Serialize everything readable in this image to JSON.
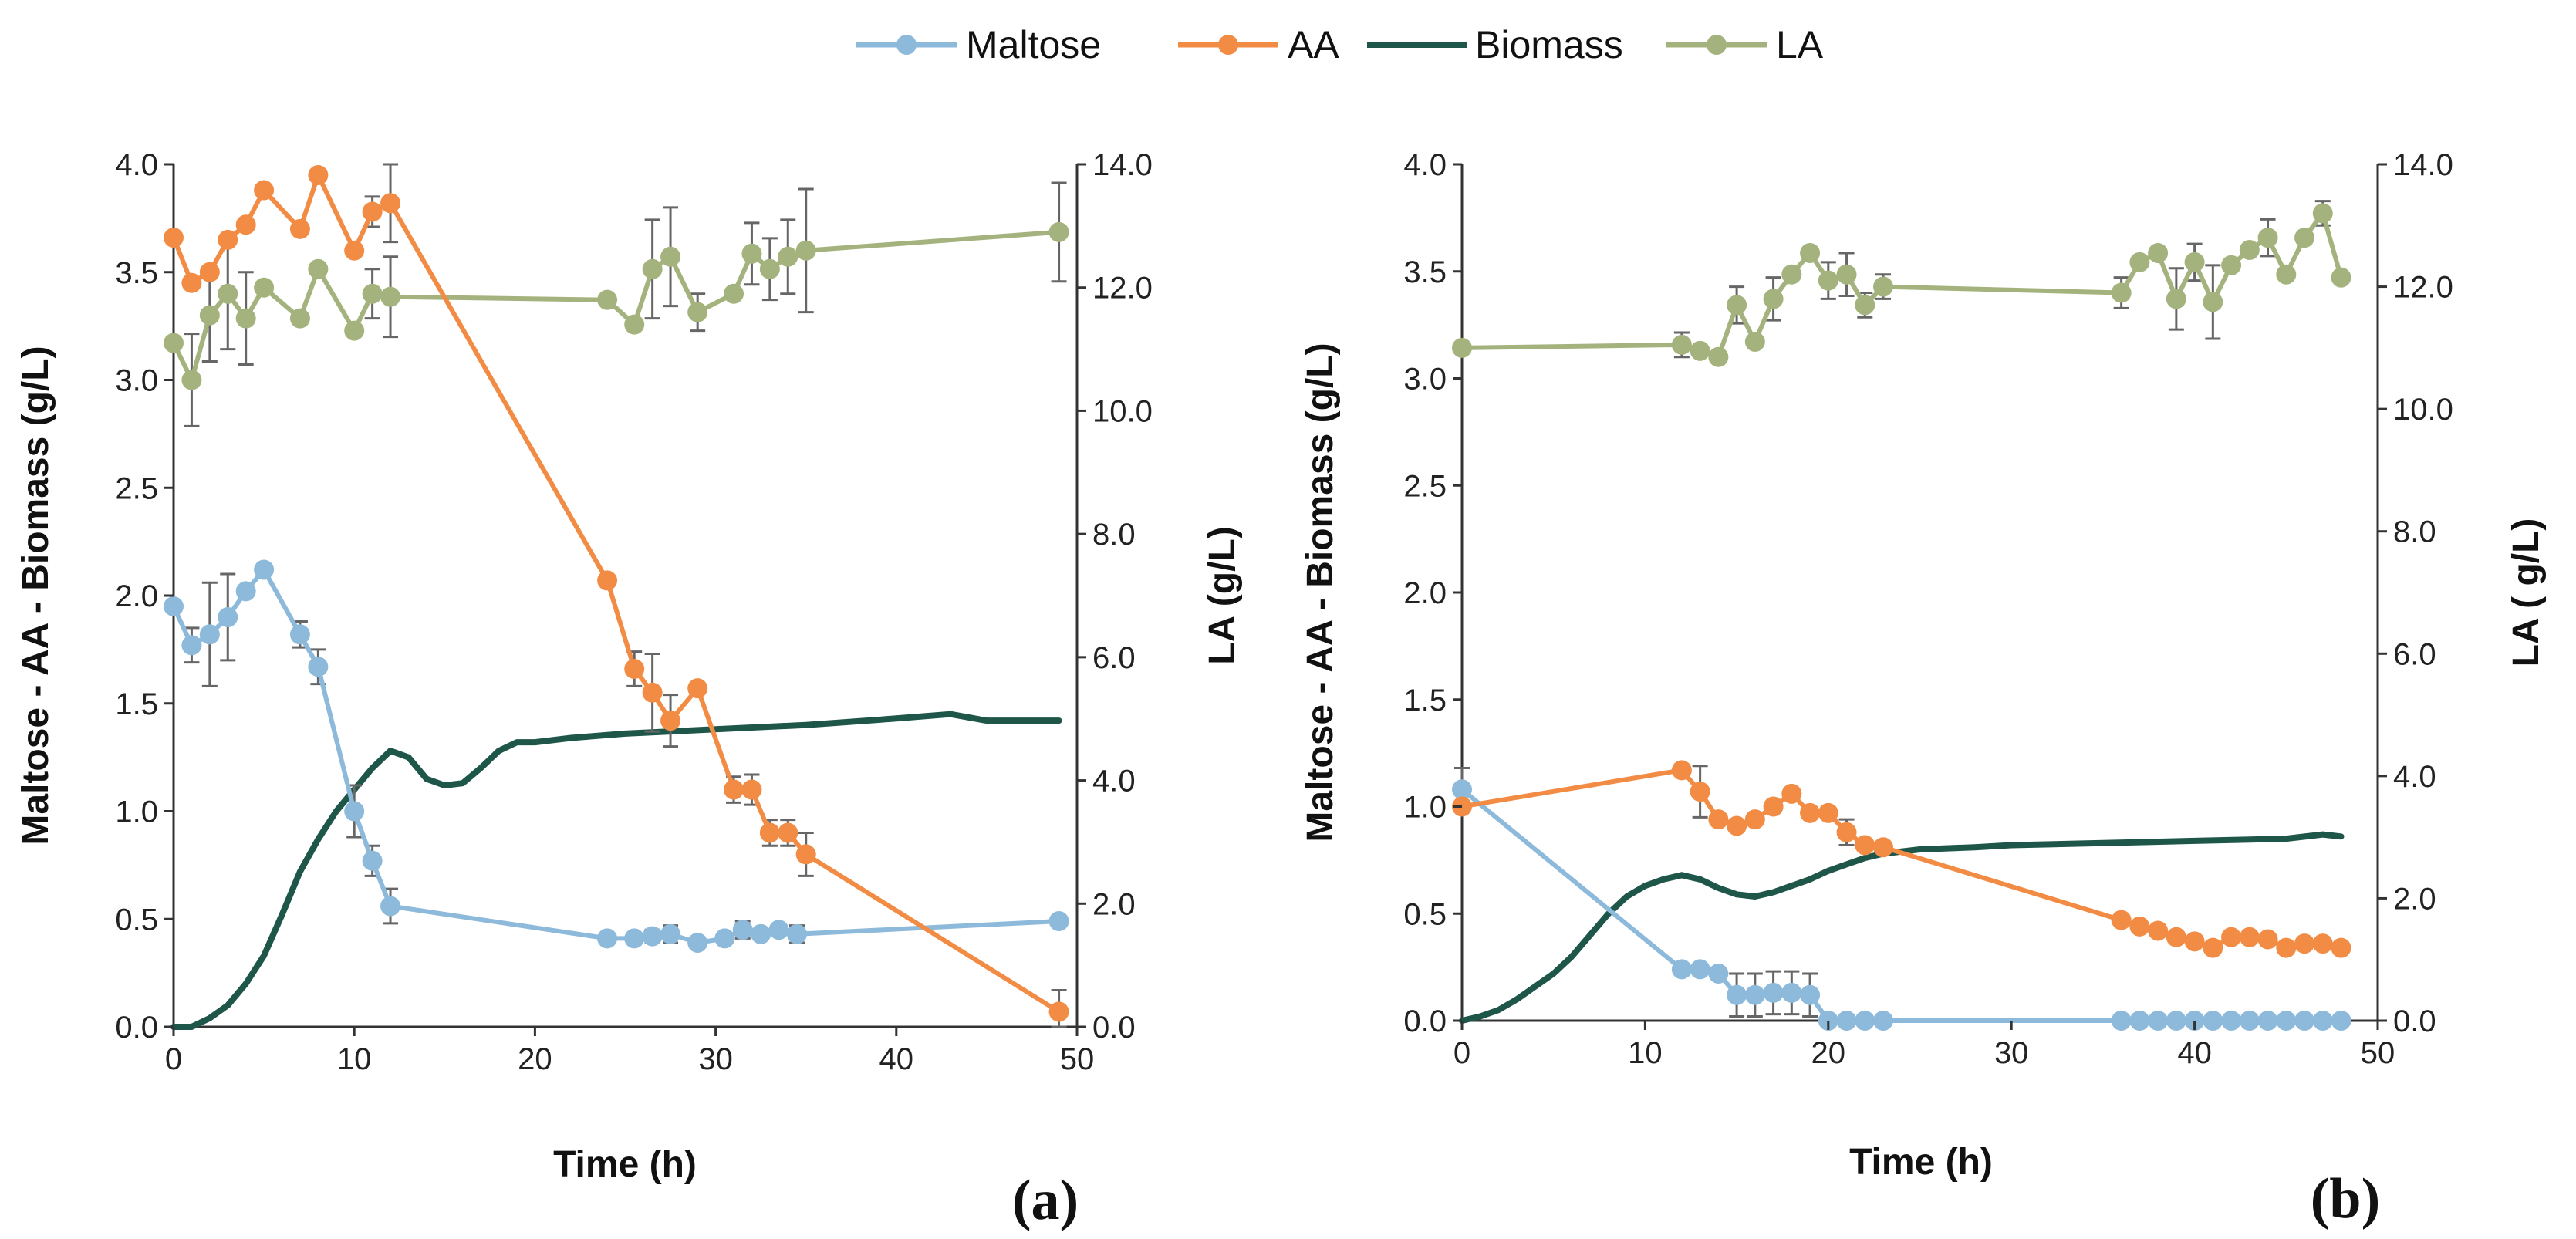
{
  "legend": [
    {
      "name": "Maltose",
      "color": "#8db9da"
    },
    {
      "name": "AA",
      "color": "#f28c45"
    },
    {
      "name": "Biomass",
      "color": "#1e564a"
    },
    {
      "name": "LA",
      "color": "#a4b37d"
    }
  ],
  "chart_data": [
    {
      "type": "line",
      "panel_label": "(a)",
      "xlabel": "Time (h)",
      "ylabel": "Maltose - AA - Biomass  (g/L)",
      "y2label": "LA (g/L)",
      "xlim": [
        0,
        50
      ],
      "ylim": [
        0,
        4
      ],
      "y2lim": [
        0,
        14
      ],
      "xticks": [
        "0",
        "10",
        "20",
        "30",
        "40",
        "50"
      ],
      "yticks": [
        "0.0",
        "0.5",
        "1.0",
        "1.5",
        "2.0",
        "2.5",
        "3.0",
        "3.5",
        "4.0"
      ],
      "y2ticks": [
        "0.0",
        "2.0",
        "4.0",
        "6.0",
        "8.0",
        "10.0",
        "12.0",
        "14.0"
      ],
      "series": [
        {
          "name": "Maltose",
          "axis": "left",
          "markers": true,
          "x": [
            0,
            1,
            2,
            3,
            4,
            5,
            7,
            8,
            10,
            11,
            12,
            24,
            25.5,
            26.5,
            27.5,
            29,
            30.5,
            31.5,
            32.5,
            33.5,
            34.5,
            49
          ],
          "y": [
            1.95,
            1.77,
            1.82,
            1.9,
            2.02,
            2.12,
            1.82,
            1.67,
            1.0,
            0.77,
            0.56,
            0.41,
            0.41,
            0.42,
            0.43,
            0.39,
            0.41,
            0.45,
            0.43,
            0.45,
            0.43,
            0.49
          ],
          "err": [
            0,
            0.08,
            0.24,
            0.2,
            0,
            0,
            0.06,
            0.08,
            0.12,
            0.07,
            0.08,
            0,
            0,
            0.03,
            0.04,
            0,
            0,
            0.04,
            0,
            0,
            0.04,
            0
          ]
        },
        {
          "name": "AA",
          "axis": "left",
          "markers": true,
          "x": [
            0,
            1,
            2,
            3,
            4,
            5,
            7,
            8,
            10,
            11,
            12,
            24,
            25.5,
            26.5,
            27.5,
            29,
            31,
            32,
            33,
            34,
            35,
            49
          ],
          "y": [
            3.66,
            3.45,
            3.5,
            3.65,
            3.72,
            3.88,
            3.7,
            3.95,
            3.6,
            3.78,
            3.82,
            2.07,
            1.66,
            1.55,
            1.42,
            1.57,
            1.1,
            1.1,
            0.9,
            0.9,
            0.8,
            0.07
          ],
          "err": [
            0,
            0,
            0,
            0,
            0,
            0,
            0,
            0,
            0,
            0.07,
            0.18,
            0,
            0.08,
            0.18,
            0.12,
            0,
            0.06,
            0.07,
            0.06,
            0.06,
            0.1,
            0.1
          ]
        },
        {
          "name": "Biomass",
          "axis": "left",
          "markers": false,
          "x": [
            0,
            1,
            2,
            3,
            4,
            5,
            6,
            7,
            8,
            9,
            10,
            11,
            12,
            13,
            14,
            15,
            16,
            17,
            18,
            19,
            20,
            22,
            25,
            30,
            35,
            40,
            43,
            45,
            49
          ],
          "y": [
            0.0,
            0.0,
            0.04,
            0.1,
            0.2,
            0.33,
            0.52,
            0.72,
            0.87,
            1.0,
            1.1,
            1.2,
            1.28,
            1.25,
            1.15,
            1.12,
            1.13,
            1.2,
            1.28,
            1.32,
            1.32,
            1.34,
            1.36,
            1.38,
            1.4,
            1.43,
            1.45,
            1.42,
            1.42
          ],
          "err": []
        },
        {
          "name": "LA",
          "axis": "right",
          "markers": true,
          "x": [
            0,
            1,
            2,
            3,
            4,
            5,
            7,
            8,
            10,
            11,
            12,
            24,
            25.5,
            26.5,
            27.5,
            29,
            31,
            32,
            33,
            34,
            35,
            49
          ],
          "y": [
            11.1,
            10.5,
            11.55,
            11.9,
            11.5,
            12.0,
            11.5,
            12.3,
            11.3,
            11.9,
            11.85,
            11.8,
            11.4,
            12.3,
            12.5,
            11.6,
            11.9,
            12.55,
            12.3,
            12.5,
            12.6,
            12.9
          ],
          "err": [
            0,
            0.75,
            0.75,
            0.9,
            0.75,
            0,
            0,
            0,
            0,
            0.4,
            0.65,
            0,
            0,
            0.8,
            0.8,
            0.3,
            0,
            0.5,
            0.5,
            0.6,
            1.0,
            0.8
          ]
        }
      ]
    },
    {
      "type": "line",
      "panel_label": "(b)",
      "xlabel": "Time (h)",
      "ylabel": "Maltose - AA - Biomass  (g/L)",
      "y2label": "LA ( g/L)",
      "xlim": [
        0,
        50
      ],
      "ylim": [
        0,
        4
      ],
      "y2lim": [
        0,
        14
      ],
      "xticks": [
        "0",
        "10",
        "20",
        "30",
        "40",
        "50"
      ],
      "yticks": [
        "0.0",
        "0.5",
        "1.0",
        "1.5",
        "2.0",
        "2.5",
        "3.0",
        "3.5",
        "4.0"
      ],
      "y2ticks": [
        "0.0",
        "2.0",
        "4.0",
        "6.0",
        "8.0",
        "10.0",
        "12.0",
        "14.0"
      ],
      "series": [
        {
          "name": "Maltose",
          "axis": "left",
          "markers": true,
          "x": [
            0,
            12,
            13,
            14,
            15,
            16,
            17,
            18,
            19,
            20,
            21,
            22,
            23,
            36,
            37,
            38,
            39,
            40,
            41,
            42,
            43,
            44,
            45,
            46,
            47,
            48
          ],
          "y": [
            1.08,
            0.24,
            0.24,
            0.22,
            0.12,
            0.12,
            0.13,
            0.13,
            0.12,
            0.0,
            0.0,
            0.0,
            0.0,
            0.0,
            0.0,
            0.0,
            0.0,
            0.0,
            0.0,
            0.0,
            0.0,
            0.0,
            0.0,
            0.0,
            0.0,
            0.0
          ],
          "err": [
            0.1,
            0,
            0,
            0,
            0.1,
            0.1,
            0.1,
            0.1,
            0.1,
            0,
            0,
            0,
            0,
            0,
            0,
            0,
            0,
            0,
            0,
            0,
            0,
            0,
            0,
            0,
            0,
            0
          ]
        },
        {
          "name": "AA",
          "axis": "left",
          "markers": true,
          "x": [
            0,
            12,
            13,
            14,
            15,
            16,
            17,
            18,
            19,
            20,
            21,
            22,
            23,
            36,
            37,
            38,
            39,
            40,
            41,
            42,
            43,
            44,
            45,
            46,
            47,
            48
          ],
          "y": [
            1.0,
            1.17,
            1.07,
            0.94,
            0.91,
            0.94,
            1.0,
            1.06,
            0.97,
            0.97,
            0.88,
            0.82,
            0.81,
            0.47,
            0.44,
            0.42,
            0.39,
            0.37,
            0.34,
            0.39,
            0.39,
            0.38,
            0.34,
            0.36,
            0.36,
            0.34
          ],
          "err": [
            0,
            0,
            0.12,
            0,
            0,
            0,
            0,
            0,
            0,
            0,
            0.06,
            0,
            0,
            0,
            0,
            0,
            0,
            0,
            0,
            0,
            0,
            0,
            0,
            0,
            0,
            0
          ]
        },
        {
          "name": "Biomass",
          "axis": "left",
          "markers": false,
          "x": [
            0,
            1,
            2,
            3,
            4,
            5,
            6,
            7,
            8,
            9,
            10,
            11,
            12,
            13,
            14,
            15,
            16,
            17,
            18,
            19,
            20,
            21,
            22,
            23,
            25,
            28,
            30,
            35,
            40,
            45,
            47,
            48
          ],
          "y": [
            0.0,
            0.02,
            0.05,
            0.1,
            0.16,
            0.22,
            0.3,
            0.4,
            0.5,
            0.58,
            0.63,
            0.66,
            0.68,
            0.66,
            0.62,
            0.59,
            0.58,
            0.6,
            0.63,
            0.66,
            0.7,
            0.73,
            0.76,
            0.78,
            0.8,
            0.81,
            0.82,
            0.83,
            0.84,
            0.85,
            0.87,
            0.86
          ],
          "err": []
        },
        {
          "name": "LA",
          "axis": "right",
          "markers": true,
          "x": [
            0,
            12,
            13,
            14,
            15,
            16,
            17,
            18,
            19,
            20,
            21,
            22,
            23,
            36,
            37,
            38,
            39,
            40,
            41,
            42,
            43,
            44,
            45,
            46,
            47,
            48
          ],
          "y": [
            11.0,
            11.05,
            10.95,
            10.85,
            11.7,
            11.1,
            11.8,
            12.2,
            12.55,
            12.1,
            12.2,
            11.7,
            12.0,
            11.9,
            12.4,
            12.55,
            11.8,
            12.4,
            11.75,
            12.35,
            12.6,
            12.8,
            12.2,
            12.8,
            13.2,
            12.15
          ],
          "err": [
            0,
            0.2,
            0,
            0,
            0.3,
            0,
            0.35,
            0,
            0,
            0.3,
            0.35,
            0.2,
            0.2,
            0.25,
            0,
            0,
            0.5,
            0.3,
            0.6,
            0,
            0,
            0.3,
            0,
            0,
            0.2,
            0
          ]
        }
      ]
    }
  ]
}
